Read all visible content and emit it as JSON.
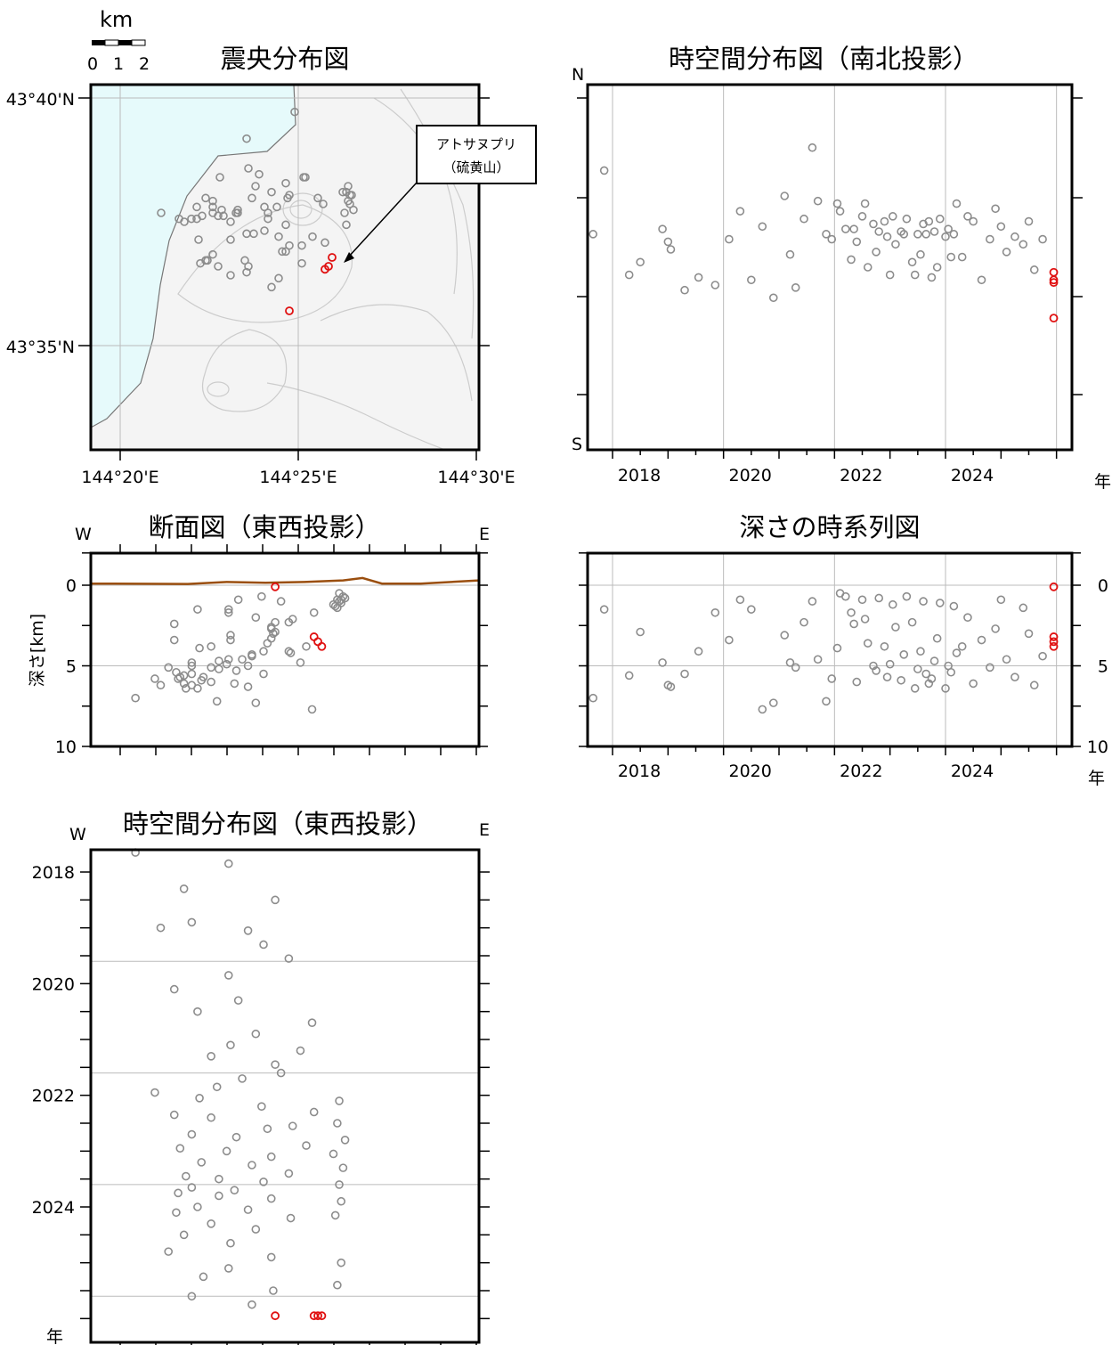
{
  "scale_bar": {
    "unit": "km",
    "ticks": [
      "0",
      "1",
      "2"
    ]
  },
  "colors": {
    "event": "#8c8c8c",
    "recent": "#e01010",
    "sea": "#e6fafb",
    "topo": "#c8c8c8",
    "surface": "#9a4e0e"
  },
  "map": {
    "title": "震央分布図",
    "lat_labels": [
      "43°40'N",
      "43°35'N"
    ],
    "lon_labels": [
      "144°20'E",
      "144°25'E",
      "144°30'E"
    ],
    "annotation_line1": "アトサヌプリ",
    "annotation_line2": "（硫黄山）"
  },
  "ns": {
    "title": "時空間分布図（南北投影）",
    "n_label": "N",
    "s_label": "S",
    "year_unit": "年",
    "year_labels": [
      "2018",
      "2020",
      "2022",
      "2024"
    ]
  },
  "section": {
    "title": "断面図（東西投影）",
    "w_label": "W",
    "e_label": "E",
    "ylabel": "深さ[km]",
    "depth_labels": [
      "0",
      "5",
      "10"
    ]
  },
  "depth_ts": {
    "title": "深さの時系列図",
    "year_unit": "年",
    "year_labels": [
      "2018",
      "2020",
      "2022",
      "2024"
    ],
    "depth_labels": [
      "0",
      "5",
      "10"
    ]
  },
  "ew": {
    "title": "時空間分布図（東西投影）",
    "w_label": "W",
    "e_label": "E",
    "year_unit": "年",
    "year_labels": [
      "2018",
      "2020",
      "2022",
      "2024"
    ]
  },
  "chart_data": {
    "type": "scatter",
    "description_units": {
      "lon": "degrees E",
      "lat": "degrees N",
      "depth": "km",
      "time": "decimal year"
    },
    "axes": {
      "lon_range": [
        144.3,
        144.5
      ],
      "lat_range": [
        43.545,
        43.685
      ],
      "depth_range": [
        -2,
        10
      ],
      "time_range": [
        2017.3,
        2025.95
      ]
    },
    "surface_profile": [
      [
        144.3,
        -0.1
      ],
      [
        144.35,
        -0.08
      ],
      [
        144.37,
        -0.2
      ],
      [
        144.39,
        -0.15
      ],
      [
        144.41,
        -0.2
      ],
      [
        144.43,
        -0.3
      ],
      [
        144.44,
        -0.45
      ],
      [
        144.45,
        -0.1
      ],
      [
        144.47,
        -0.1
      ],
      [
        144.5,
        -0.3
      ]
    ],
    "events": [
      [
        144.323,
        43.628,
        7.0,
        2017.65
      ],
      [
        144.371,
        43.653,
        1.5,
        2017.85
      ],
      [
        144.348,
        43.612,
        5.6,
        2018.3
      ],
      [
        144.395,
        43.617,
        2.9,
        2018.5
      ],
      [
        144.352,
        43.63,
        4.8,
        2018.9
      ],
      [
        144.336,
        43.625,
        6.2,
        2019.0
      ],
      [
        144.381,
        43.622,
        6.3,
        2019.05
      ],
      [
        144.389,
        43.606,
        5.5,
        2019.3
      ],
      [
        144.402,
        43.611,
        4.1,
        2019.55
      ],
      [
        144.371,
        43.608,
        1.7,
        2019.85
      ],
      [
        144.343,
        43.626,
        3.4,
        2020.1
      ],
      [
        144.376,
        43.637,
        0.9,
        2020.3
      ],
      [
        144.355,
        43.61,
        1.5,
        2020.5
      ],
      [
        144.414,
        43.631,
        7.7,
        2020.7
      ],
      [
        144.385,
        43.603,
        7.3,
        2020.9
      ],
      [
        144.372,
        43.643,
        3.1,
        2021.1
      ],
      [
        144.408,
        43.62,
        4.8,
        2021.2
      ],
      [
        144.362,
        43.607,
        5.1,
        2021.3
      ],
      [
        144.395,
        43.634,
        2.3,
        2021.45
      ],
      [
        144.398,
        43.662,
        1.0,
        2021.6
      ],
      [
        144.378,
        43.641,
        4.6,
        2021.7
      ],
      [
        144.365,
        43.628,
        7.2,
        2021.85
      ],
      [
        144.333,
        43.626,
        5.8,
        2021.95
      ],
      [
        144.356,
        43.64,
        3.9,
        2022.05
      ],
      [
        144.428,
        43.637,
        0.5,
        2022.1
      ],
      [
        144.388,
        43.63,
        0.7,
        2022.2
      ],
      [
        144.415,
        43.618,
        1.7,
        2022.3
      ],
      [
        144.343,
        43.63,
        2.4,
        2022.35
      ],
      [
        144.362,
        43.625,
        6.0,
        2022.4
      ],
      [
        144.427,
        43.635,
        0.9,
        2022.5
      ],
      [
        144.404,
        43.64,
        2.1,
        2022.55
      ],
      [
        144.391,
        43.615,
        3.6,
        2022.6
      ],
      [
        144.352,
        43.632,
        5.0,
        2022.7
      ],
      [
        144.375,
        43.621,
        5.3,
        2022.75
      ],
      [
        144.431,
        43.629,
        0.8,
        2022.8
      ],
      [
        144.411,
        43.633,
        3.8,
        2022.9
      ],
      [
        144.346,
        43.627,
        5.7,
        2022.95
      ],
      [
        144.37,
        43.612,
        4.9,
        2023.0
      ],
      [
        144.425,
        43.635,
        1.2,
        2023.05
      ],
      [
        144.393,
        43.624,
        2.6,
        2023.1
      ],
      [
        144.357,
        43.629,
        5.9,
        2023.2
      ],
      [
        144.383,
        43.628,
        4.3,
        2023.25
      ],
      [
        144.43,
        43.634,
        0.7,
        2023.3
      ],
      [
        144.402,
        43.617,
        2.3,
        2023.4
      ],
      [
        144.349,
        43.612,
        6.4,
        2023.45
      ],
      [
        144.366,
        43.628,
        5.2,
        2023.5
      ],
      [
        144.389,
        43.62,
        4.1,
        2023.55
      ],
      [
        144.428,
        43.632,
        1.0,
        2023.6
      ],
      [
        144.352,
        43.628,
        5.5,
        2023.65
      ],
      [
        144.374,
        43.633,
        6.1,
        2023.7
      ],
      [
        144.345,
        43.611,
        5.8,
        2023.75
      ],
      [
        144.366,
        43.629,
        4.7,
        2023.8
      ],
      [
        144.393,
        43.615,
        3.3,
        2023.85
      ],
      [
        144.429,
        43.634,
        1.1,
        2023.9
      ],
      [
        144.355,
        43.627,
        6.4,
        2024.0
      ],
      [
        144.381,
        43.63,
        5.0,
        2024.05
      ],
      [
        144.344,
        43.619,
        5.4,
        2024.1
      ],
      [
        144.426,
        43.628,
        1.3,
        2024.15
      ],
      [
        144.403,
        43.64,
        4.2,
        2024.2
      ],
      [
        144.362,
        43.619,
        3.8,
        2024.3
      ],
      [
        144.385,
        43.635,
        2.0,
        2024.4
      ],
      [
        144.348,
        43.633,
        6.1,
        2024.5
      ],
      [
        144.372,
        43.61,
        3.4,
        2024.65
      ],
      [
        144.34,
        43.626,
        5.1,
        2024.8
      ],
      [
        144.393,
        43.638,
        2.7,
        2024.9
      ],
      [
        144.429,
        43.631,
        0.9,
        2025.0
      ],
      [
        144.371,
        43.621,
        4.6,
        2025.1
      ],
      [
        144.358,
        43.627,
        5.7,
        2025.25
      ],
      [
        144.427,
        43.624,
        1.4,
        2025.4
      ],
      [
        144.394,
        43.633,
        3.0,
        2025.5
      ],
      [
        144.352,
        43.614,
        6.2,
        2025.6
      ],
      [
        144.383,
        43.626,
        4.4,
        2025.75
      ]
    ],
    "recent_events": [
      [
        144.395,
        43.595,
        0.1,
        2025.95
      ],
      [
        144.415,
        43.609,
        3.2,
        2025.95
      ],
      [
        144.417,
        43.61,
        3.5,
        2025.95
      ],
      [
        144.419,
        43.613,
        3.8,
        2025.95
      ]
    ]
  }
}
